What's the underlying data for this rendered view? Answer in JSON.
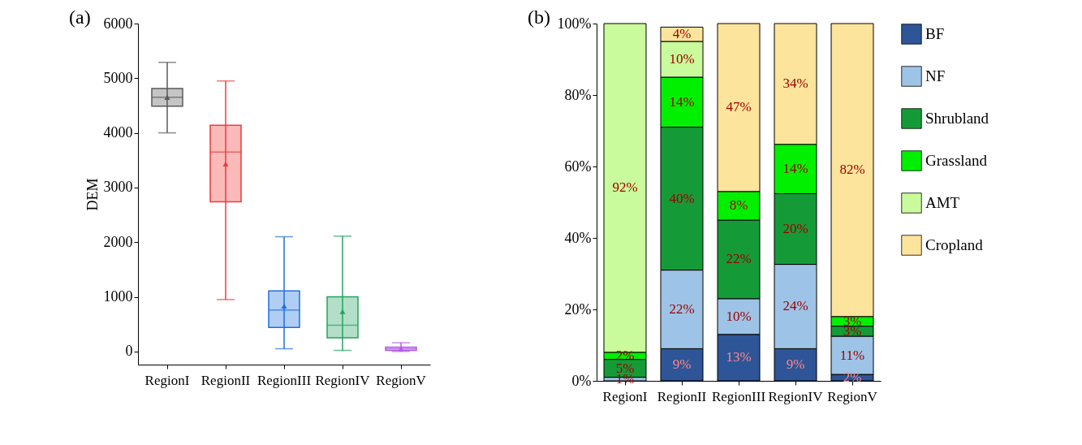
{
  "chart_data": [
    {
      "type": "box",
      "title": "(a)",
      "ylabel": "DEM",
      "categories": [
        "RegionI",
        "RegionII",
        "RegionIII",
        "RegionIV",
        "RegionV"
      ],
      "boxes": [
        {
          "low": 4000,
          "q1": 4490,
          "median": 4650,
          "q3": 4810,
          "high": 5290,
          "mean": 4650
        },
        {
          "low": 950,
          "q1": 2740,
          "median": 3650,
          "q3": 4140,
          "high": 4950,
          "mean": 3430
        },
        {
          "low": 50,
          "q1": 440,
          "median": 760,
          "q3": 1110,
          "high": 2100,
          "mean": 830
        },
        {
          "low": 20,
          "q1": 250,
          "median": 480,
          "q3": 1000,
          "high": 2110,
          "mean": 730
        },
        {
          "low": 0,
          "q1": 20,
          "median": 50,
          "q3": 80,
          "high": 160,
          "mean": 50
        }
      ],
      "colors": [
        "#595959",
        "#f03a3a",
        "#1e6fe0",
        "#25a262",
        "#b45be3"
      ],
      "marker": "triangle",
      "ylim": [
        -240,
        6000
      ],
      "yticks": [
        0,
        1000,
        2000,
        3000,
        4000,
        5000,
        6000
      ],
      "grid": false
    },
    {
      "type": "bar",
      "title": "(b)",
      "stacked": true,
      "categories": [
        "RegionI",
        "RegionII",
        "RegionIII",
        "RegionIV",
        "RegionV"
      ],
      "series": [
        {
          "name": "BF",
          "color": "#2e5597",
          "values": [
            null,
            9,
            13,
            9,
            1.8
          ],
          "value_labels": [
            null,
            "9%",
            "13%",
            "9%",
            "2%"
          ]
        },
        {
          "name": "NF",
          "color": "#9dc3e6",
          "values": [
            1,
            22,
            10,
            23.6,
            10.7
          ],
          "value_labels": [
            "1%",
            "22%",
            "10%",
            "24%",
            "11%"
          ]
        },
        {
          "name": "Shrubland",
          "color": "#149b37",
          "values": [
            5,
            40,
            22,
            19.8,
            2.8
          ],
          "value_labels": [
            "5%",
            "40%",
            "22%",
            "20%",
            "3%"
          ]
        },
        {
          "name": "Grassland",
          "color": "#00f000",
          "values": [
            2,
            14,
            8,
            13.8,
            2.7
          ],
          "value_labels": [
            "2%",
            "14%",
            "8%",
            "14%",
            "3%"
          ]
        },
        {
          "name": "AMT",
          "color": "#c9fa9b",
          "values": [
            92,
            10,
            null,
            null,
            null
          ],
          "value_labels": [
            "92%",
            "10%",
            null,
            null,
            null
          ]
        },
        {
          "name": "Cropland",
          "color": "#fde49c",
          "values": [
            null,
            4,
            47,
            33.8,
            82
          ],
          "value_labels": [
            null,
            "4%",
            "47%",
            "34%",
            "82%"
          ]
        }
      ],
      "ylim": [
        0,
        100
      ],
      "yticks": [
        {
          "value": 0,
          "label": "0%"
        },
        {
          "value": 20,
          "label": "20%"
        },
        {
          "value": 40,
          "label": "40%"
        },
        {
          "value": 60,
          "label": "60%"
        },
        {
          "value": 80,
          "label": "80%"
        },
        {
          "value": 100,
          "label": "100%"
        }
      ],
      "legend": "right",
      "grid": false
    }
  ]
}
